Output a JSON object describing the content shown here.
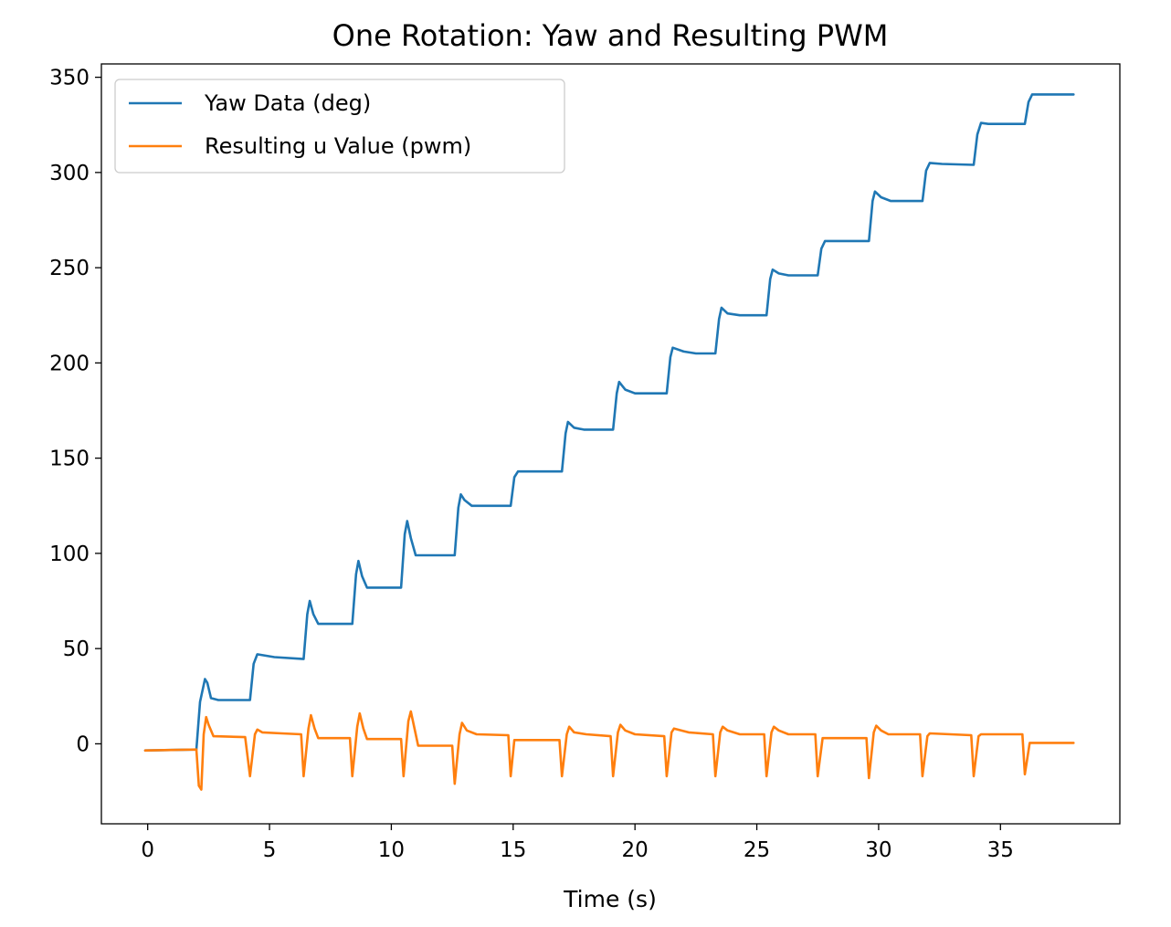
{
  "chart_data": {
    "type": "line",
    "title": "One Rotation: Yaw and Resulting PWM",
    "xlabel": "Time (s)",
    "ylabel": "",
    "xlim": [
      -1.9,
      39.9
    ],
    "ylim": [
      -42,
      357
    ],
    "xticks": [
      0,
      5,
      10,
      15,
      20,
      25,
      30,
      35
    ],
    "yticks": [
      0,
      50,
      100,
      150,
      200,
      250,
      300,
      350
    ],
    "grid": false,
    "legend": "upper left",
    "series": [
      {
        "name": "Yaw Data (deg)",
        "color": "#1f77b4",
        "points": [
          [
            -0.1,
            -3.5
          ],
          [
            2.0,
            -3.0
          ],
          [
            2.15,
            22
          ],
          [
            2.35,
            34
          ],
          [
            2.45,
            32
          ],
          [
            2.6,
            24
          ],
          [
            2.9,
            23
          ],
          [
            4.2,
            23
          ],
          [
            4.35,
            42
          ],
          [
            4.5,
            47
          ],
          [
            5.2,
            45.5
          ],
          [
            6.4,
            44.5
          ],
          [
            6.55,
            68
          ],
          [
            6.65,
            75
          ],
          [
            6.8,
            68
          ],
          [
            7.0,
            63
          ],
          [
            8.4,
            63
          ],
          [
            8.55,
            89
          ],
          [
            8.65,
            96
          ],
          [
            8.8,
            88
          ],
          [
            9.0,
            82
          ],
          [
            10.4,
            82
          ],
          [
            10.55,
            110
          ],
          [
            10.65,
            117
          ],
          [
            10.8,
            108
          ],
          [
            11.0,
            99
          ],
          [
            12.6,
            99
          ],
          [
            12.75,
            124
          ],
          [
            12.85,
            131
          ],
          [
            13.0,
            128
          ],
          [
            13.3,
            125
          ],
          [
            14.9,
            125
          ],
          [
            15.05,
            140
          ],
          [
            15.2,
            143
          ],
          [
            17.0,
            143
          ],
          [
            17.15,
            163
          ],
          [
            17.25,
            169
          ],
          [
            17.5,
            166
          ],
          [
            17.9,
            165
          ],
          [
            19.1,
            165
          ],
          [
            19.25,
            184
          ],
          [
            19.35,
            190
          ],
          [
            19.6,
            186
          ],
          [
            20.0,
            184
          ],
          [
            21.3,
            184
          ],
          [
            21.45,
            203
          ],
          [
            21.55,
            208
          ],
          [
            22.0,
            206
          ],
          [
            22.5,
            205
          ],
          [
            23.3,
            205
          ],
          [
            23.45,
            223
          ],
          [
            23.55,
            229
          ],
          [
            23.8,
            226
          ],
          [
            24.3,
            225
          ],
          [
            25.4,
            225
          ],
          [
            25.55,
            244
          ],
          [
            25.65,
            249
          ],
          [
            25.9,
            247
          ],
          [
            26.3,
            246
          ],
          [
            27.5,
            246
          ],
          [
            27.65,
            260
          ],
          [
            27.8,
            264
          ],
          [
            29.6,
            264
          ],
          [
            29.75,
            285
          ],
          [
            29.85,
            290
          ],
          [
            30.1,
            287
          ],
          [
            30.5,
            285
          ],
          [
            31.8,
            285
          ],
          [
            31.95,
            301
          ],
          [
            32.1,
            305
          ],
          [
            32.6,
            304.5
          ],
          [
            33.9,
            304
          ],
          [
            34.05,
            320
          ],
          [
            34.2,
            326
          ],
          [
            34.5,
            325.5
          ],
          [
            36.0,
            325.5
          ],
          [
            36.15,
            337
          ],
          [
            36.3,
            341
          ],
          [
            38.0,
            341
          ]
        ]
      },
      {
        "name": "Resulting u Value (pwm)",
        "color": "#ff7f0e",
        "points": [
          [
            -0.1,
            -3.5
          ],
          [
            2.0,
            -3.0
          ],
          [
            2.1,
            -22
          ],
          [
            2.2,
            -24
          ],
          [
            2.3,
            5
          ],
          [
            2.4,
            14
          ],
          [
            2.5,
            10
          ],
          [
            2.7,
            4
          ],
          [
            4.0,
            3.5
          ],
          [
            4.2,
            -17
          ],
          [
            4.4,
            5
          ],
          [
            4.5,
            7.5
          ],
          [
            4.7,
            6
          ],
          [
            5.5,
            5.5
          ],
          [
            6.3,
            5
          ],
          [
            6.4,
            -17
          ],
          [
            6.6,
            8
          ],
          [
            6.7,
            15
          ],
          [
            6.85,
            8
          ],
          [
            7.0,
            3
          ],
          [
            8.3,
            3
          ],
          [
            8.4,
            -17
          ],
          [
            8.6,
            9
          ],
          [
            8.7,
            16
          ],
          [
            8.85,
            8
          ],
          [
            9.0,
            2.5
          ],
          [
            10.4,
            2.5
          ],
          [
            10.5,
            -17
          ],
          [
            10.7,
            12
          ],
          [
            10.8,
            17
          ],
          [
            10.95,
            8
          ],
          [
            11.1,
            -1
          ],
          [
            12.5,
            -1
          ],
          [
            12.6,
            -21
          ],
          [
            12.8,
            5
          ],
          [
            12.9,
            11
          ],
          [
            13.1,
            7
          ],
          [
            13.5,
            5
          ],
          [
            14.8,
            4.5
          ],
          [
            14.9,
            -17
          ],
          [
            15.05,
            2
          ],
          [
            16.9,
            2
          ],
          [
            17.0,
            -17
          ],
          [
            17.2,
            5
          ],
          [
            17.3,
            9
          ],
          [
            17.5,
            6
          ],
          [
            18.0,
            5
          ],
          [
            19.0,
            4
          ],
          [
            19.1,
            -17
          ],
          [
            19.3,
            6
          ],
          [
            19.4,
            10
          ],
          [
            19.6,
            7
          ],
          [
            20.0,
            5
          ],
          [
            21.2,
            4
          ],
          [
            21.3,
            -17
          ],
          [
            21.5,
            6
          ],
          [
            21.6,
            8
          ],
          [
            22.2,
            6
          ],
          [
            23.2,
            5
          ],
          [
            23.3,
            -17
          ],
          [
            23.5,
            6
          ],
          [
            23.6,
            9
          ],
          [
            23.8,
            7
          ],
          [
            24.3,
            5
          ],
          [
            25.3,
            5
          ],
          [
            25.4,
            -17
          ],
          [
            25.6,
            6
          ],
          [
            25.7,
            9
          ],
          [
            25.9,
            7
          ],
          [
            26.3,
            5
          ],
          [
            27.4,
            5
          ],
          [
            27.5,
            -17
          ],
          [
            27.7,
            3
          ],
          [
            29.5,
            3
          ],
          [
            29.6,
            -18
          ],
          [
            29.8,
            6
          ],
          [
            29.9,
            9.5
          ],
          [
            30.1,
            7
          ],
          [
            30.4,
            5
          ],
          [
            31.7,
            5
          ],
          [
            31.8,
            -17
          ],
          [
            32.0,
            4
          ],
          [
            32.1,
            5.5
          ],
          [
            33.8,
            4.5
          ],
          [
            33.9,
            -17
          ],
          [
            34.1,
            4
          ],
          [
            34.2,
            5
          ],
          [
            35.9,
            5
          ],
          [
            36.0,
            -16
          ],
          [
            36.2,
            0.5
          ],
          [
            36.4,
            0.5
          ],
          [
            38.0,
            0.5
          ]
        ]
      }
    ]
  }
}
